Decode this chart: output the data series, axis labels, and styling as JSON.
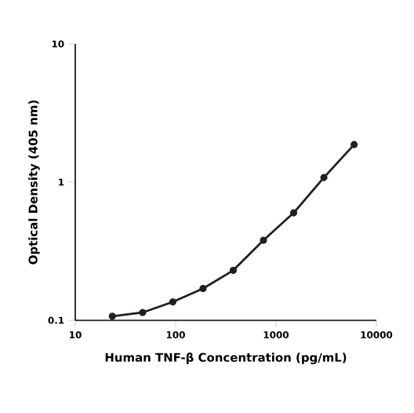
{
  "chart_data": {
    "type": "line",
    "xlabel": "Human TNF-β Concentration (pg/mL)",
    "ylabel": "Optical Density (405 nm)",
    "log": "xy",
    "marker": "circle",
    "grid": false,
    "x": [
      23.4,
      46.9,
      93.75,
      187.5,
      375,
      750,
      1500,
      3000,
      6000
    ],
    "series": [
      {
        "color": "#231f20",
        "values": [
          0.107,
          0.114,
          0.136,
          0.17,
          0.23,
          0.38,
          0.6,
          1.08,
          1.87
        ]
      }
    ],
    "xlim": [
      10,
      10000
    ],
    "ylim": [
      0.1,
      10
    ],
    "xticks": [
      10,
      100,
      1000,
      10000
    ],
    "yticks": [
      0.1,
      1,
      10
    ]
  }
}
